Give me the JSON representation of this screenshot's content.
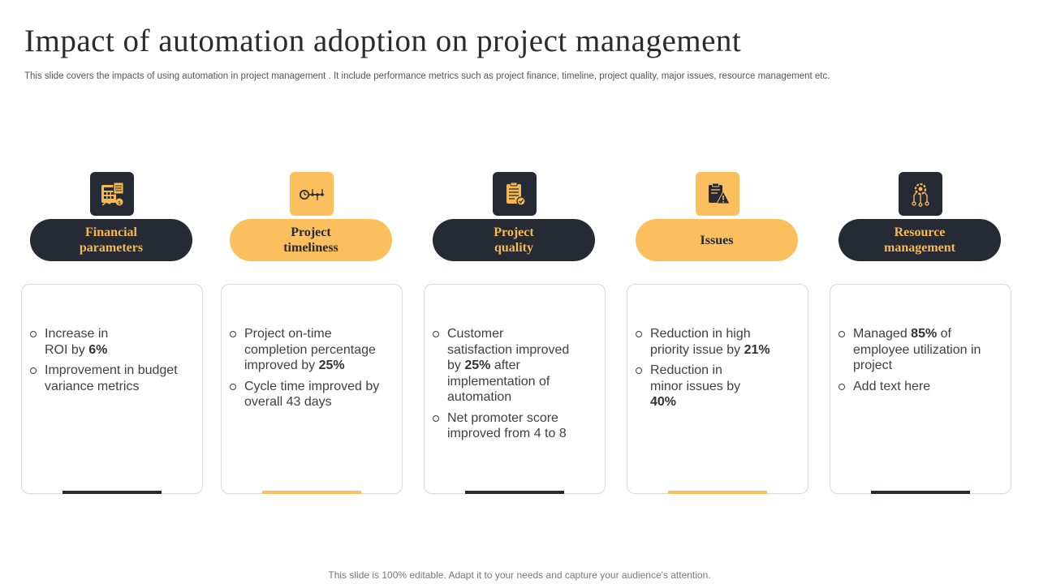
{
  "header": {
    "title": "Impact of automation adoption on project management",
    "subtitle": "This slide covers the impacts of using automation in project management . It include performance metrics such as project finance, timeline, project quality, major issues, resource management etc."
  },
  "colors": {
    "dark": "#262a35",
    "gold": "#fbbf5e",
    "text": "#404040"
  },
  "columns": [
    {
      "icon": "financial-calculator-icon",
      "label_line1": "Financial",
      "label_line2": "parameters",
      "bullets": [
        {
          "pre": "Increase in ROI by ",
          "bold": "6%",
          "post": ""
        },
        {
          "pre": "Improvement  in budget variance metrics",
          "bold": "",
          "post": ""
        }
      ]
    },
    {
      "icon": "timeline-clock-icon",
      "label_line1": "Project",
      "label_line2": "timeliness",
      "bullets": [
        {
          "pre": "Project on-time completion percentage improved by ",
          "bold": "25%",
          "post": ""
        },
        {
          "pre": "Cycle time improved by overall 43 days",
          "bold": "",
          "post": ""
        }
      ]
    },
    {
      "icon": "quality-clipboard-icon",
      "label_line1": "Project",
      "label_line2": "quality",
      "bullets": [
        {
          "pre": "Customer satisfaction improved by ",
          "bold": "25%",
          "post": " after implementation of automation"
        },
        {
          "pre": "Net promoter score improved from 4 to 8",
          "bold": "",
          "post": ""
        }
      ]
    },
    {
      "icon": "issues-warning-clipboard-icon",
      "label_line1": "Issues",
      "label_line2": "",
      "bullets": [
        {
          "pre": "Reduction in high priority issue by ",
          "bold": "21%",
          "post": ""
        },
        {
          "pre": "Reduction in minor issues by ",
          "bold": "40%",
          "post": ""
        }
      ]
    },
    {
      "icon": "resource-gear-network-icon",
      "label_line1": "Resource",
      "label_line2": "management",
      "bullets": [
        {
          "pre": "Managed ",
          "bold": "85%",
          "post": " of employee utilization in project"
        },
        {
          "pre": "Add text here",
          "bold": "",
          "post": ""
        }
      ]
    }
  ],
  "footer": {
    "text": "This slide is 100% editable. Adapt it to your needs and capture your audience's attention."
  }
}
